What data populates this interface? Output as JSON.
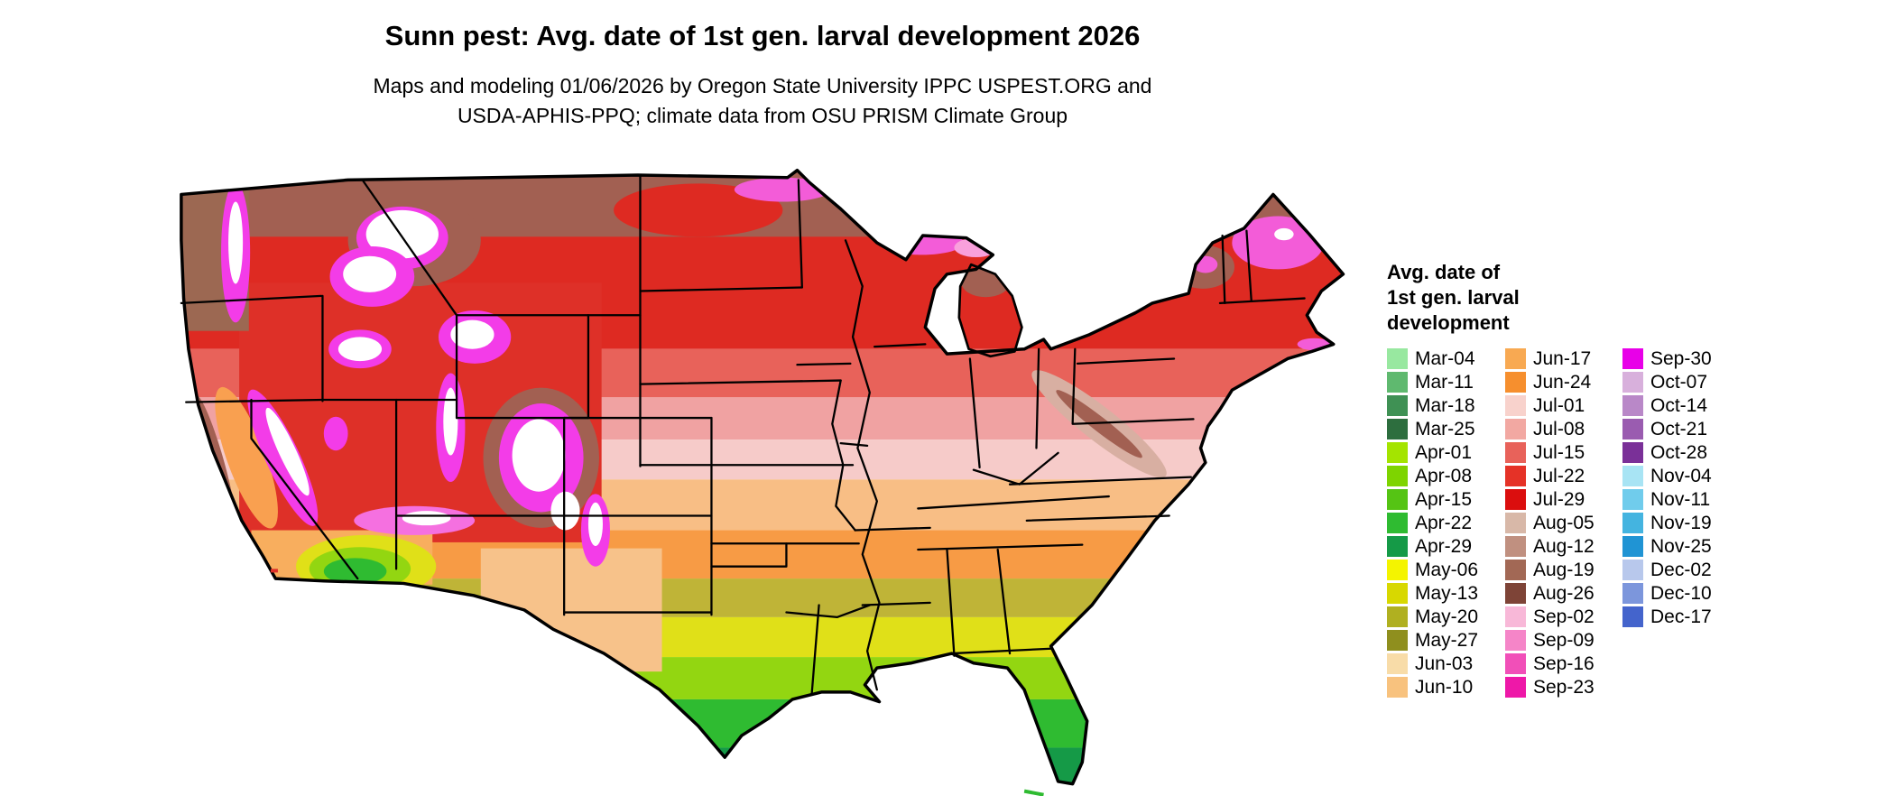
{
  "title": "Sunn pest: Avg. date of 1st gen. larval development 2026",
  "subtitle": {
    "line1": "Maps and modeling 01/06/2026 by Oregon State University IPPC USPEST.ORG and",
    "line2": "USDA-APHIS-PPQ; climate data from OSU PRISM Climate Group"
  },
  "legend": {
    "title": {
      "line1": "Avg. date of",
      "line2": "1st gen. larval",
      "line3": "development"
    },
    "columns": [
      {
        "entries": [
          {
            "label": "Mar-04",
            "color": "#98E8A0"
          },
          {
            "label": "Mar-11",
            "color": "#5FB96F"
          },
          {
            "label": "Mar-18",
            "color": "#3F9154"
          },
          {
            "label": "Mar-25",
            "color": "#2D6E3E"
          },
          {
            "label": "Apr-01",
            "color": "#A4E400"
          },
          {
            "label": "Apr-08",
            "color": "#7ED400"
          },
          {
            "label": "Apr-15",
            "color": "#55C414"
          },
          {
            "label": "Apr-22",
            "color": "#2FBB31"
          },
          {
            "label": "Apr-29",
            "color": "#159A47"
          },
          {
            "label": "May-06",
            "color": "#F4F400"
          },
          {
            "label": "May-13",
            "color": "#D8D800"
          },
          {
            "label": "May-20",
            "color": "#B0B020"
          },
          {
            "label": "May-27",
            "color": "#8F8F1E"
          },
          {
            "label": "Jun-03",
            "color": "#F8DCA8"
          },
          {
            "label": "Jun-10",
            "color": "#F8C27E"
          }
        ]
      },
      {
        "entries": [
          {
            "label": "Jun-17",
            "color": "#F8A952"
          },
          {
            "label": "Jun-24",
            "color": "#F68F2E"
          },
          {
            "label": "Jul-01",
            "color": "#F8D2CC"
          },
          {
            "label": "Jul-08",
            "color": "#F2A8A2"
          },
          {
            "label": "Jul-15",
            "color": "#E8625A"
          },
          {
            "label": "Jul-22",
            "color": "#E53227"
          },
          {
            "label": "Jul-29",
            "color": "#DB0E0E"
          },
          {
            "label": "Aug-05",
            "color": "#D8B8A8"
          },
          {
            "label": "Aug-12",
            "color": "#C09080"
          },
          {
            "label": "Aug-19",
            "color": "#A26855"
          },
          {
            "label": "Aug-26",
            "color": "#7E4437"
          },
          {
            "label": "Sep-02",
            "color": "#F8B8D8"
          },
          {
            "label": "Sep-09",
            "color": "#F585C8"
          },
          {
            "label": "Sep-16",
            "color": "#F14FB8"
          },
          {
            "label": "Sep-23",
            "color": "#EE18A8"
          }
        ]
      },
      {
        "entries": [
          {
            "label": "Sep-30",
            "color": "#E800E8"
          },
          {
            "label": "Oct-07",
            "color": "#D8B0DC"
          },
          {
            "label": "Oct-14",
            "color": "#B988C8"
          },
          {
            "label": "Oct-21",
            "color": "#9A5CB0"
          },
          {
            "label": "Oct-28",
            "color": "#7A3098"
          },
          {
            "label": "Nov-04",
            "color": "#A8E4F4"
          },
          {
            "label": "Nov-11",
            "color": "#70CCEC"
          },
          {
            "label": "Nov-19",
            "color": "#44B4E0"
          },
          {
            "label": "Nov-25",
            "color": "#2094D4"
          },
          {
            "label": "Dec-02",
            "color": "#B8C8EC"
          },
          {
            "label": "Dec-10",
            "color": "#7C96DC"
          },
          {
            "label": "Dec-17",
            "color": "#4464CC"
          }
        ]
      }
    ]
  }
}
